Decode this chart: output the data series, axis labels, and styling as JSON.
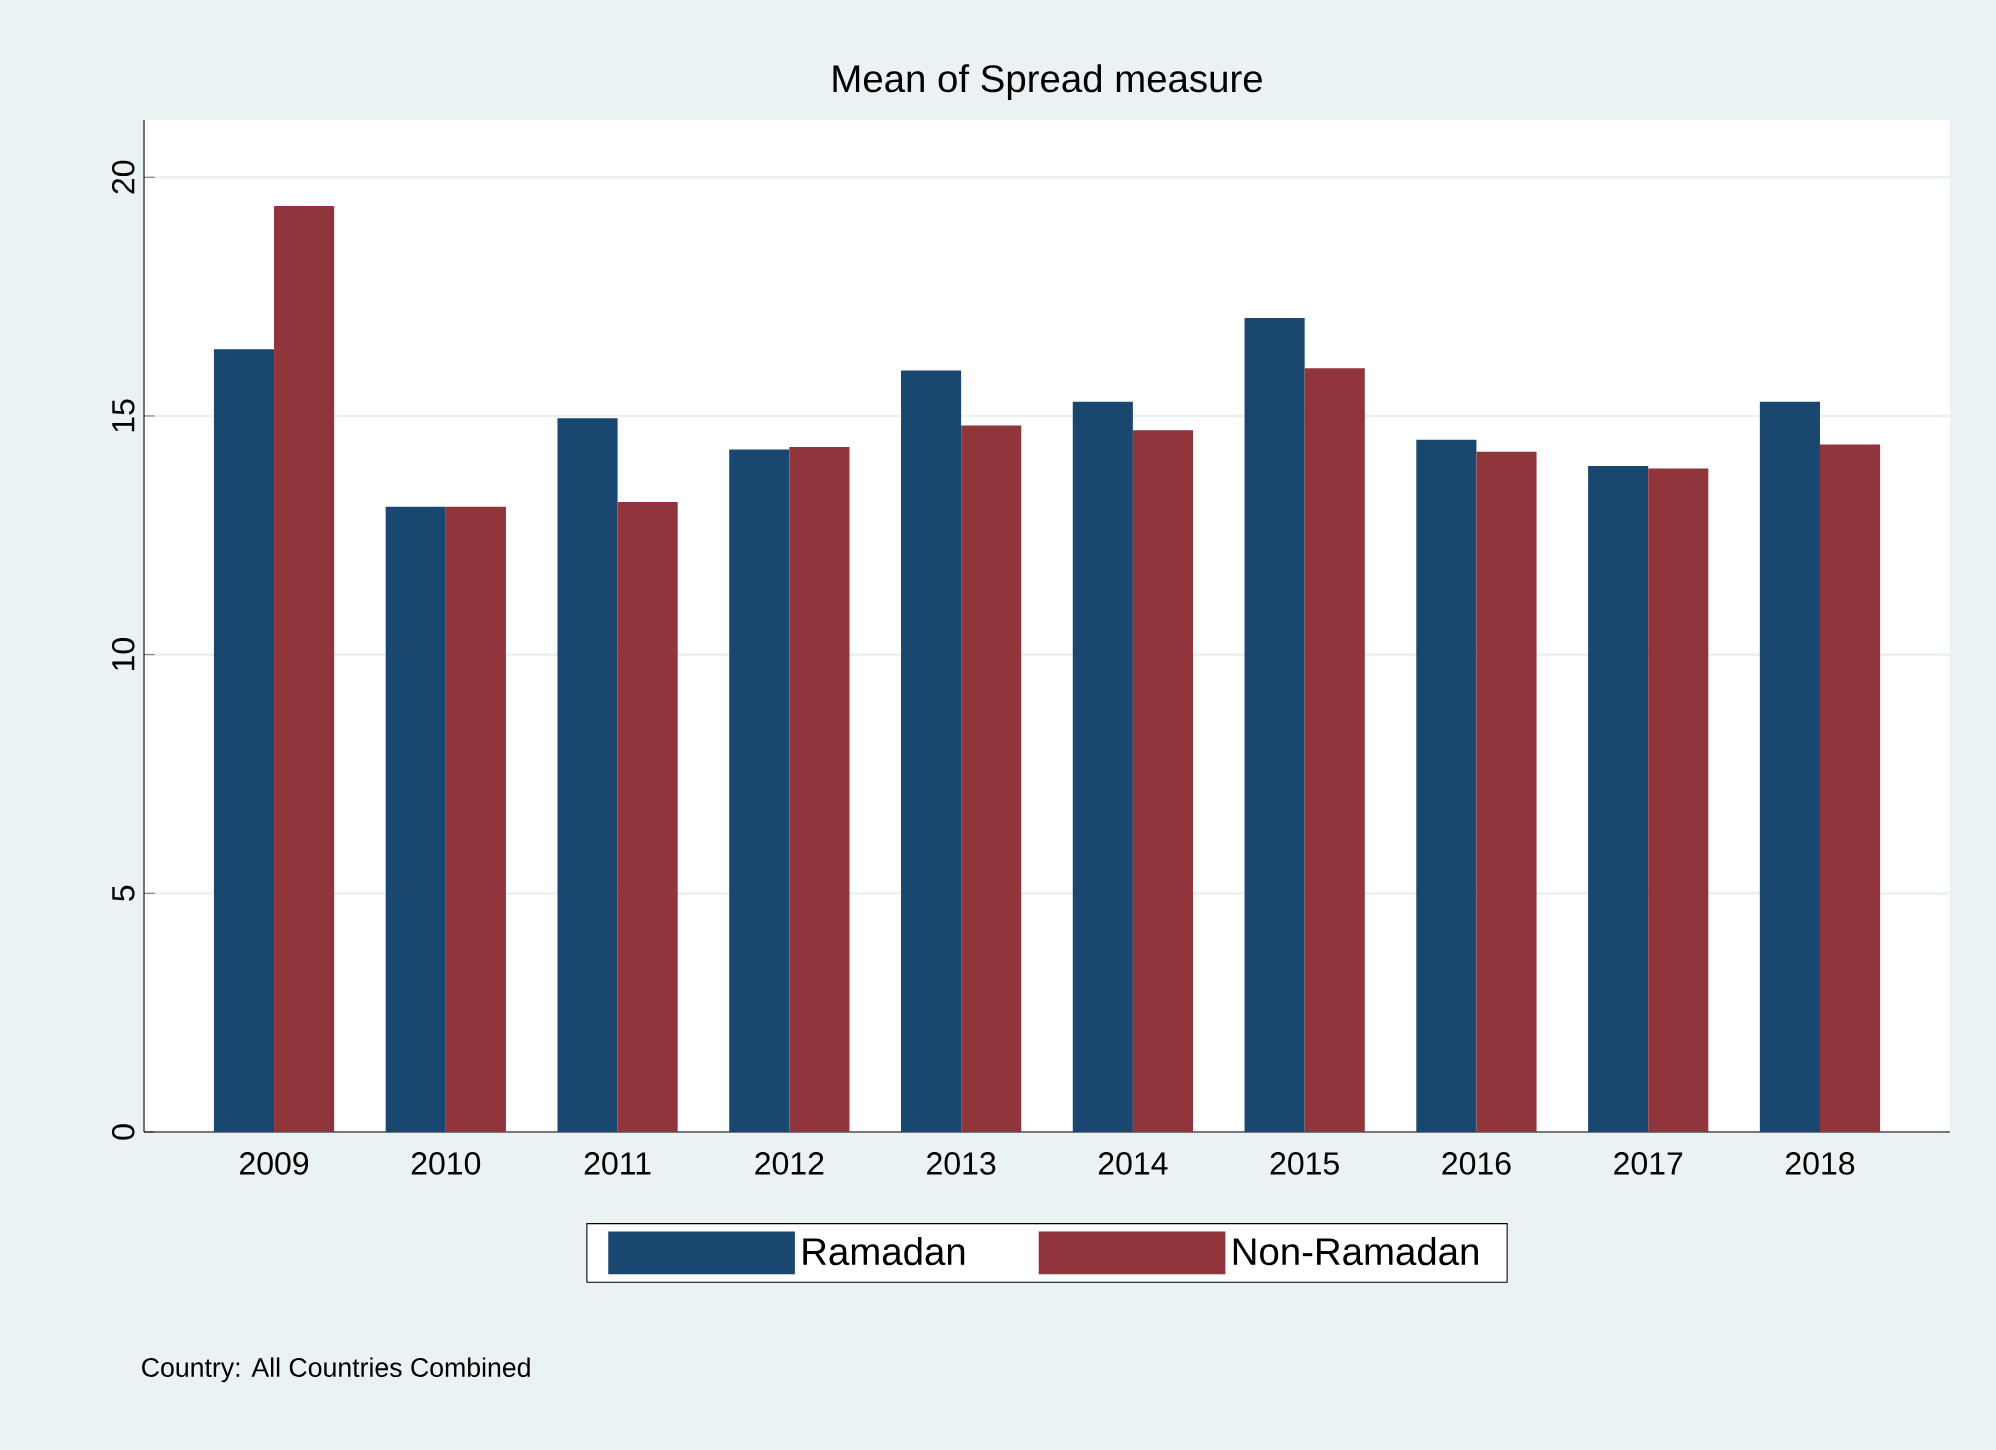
{
  "chart_data": {
    "type": "bar",
    "title": "Mean of Spread measure",
    "categories": [
      "2009",
      "2010",
      "2011",
      "2012",
      "2013",
      "2014",
      "2015",
      "2016",
      "2017",
      "2018"
    ],
    "series": [
      {
        "name": "Ramadan",
        "color": "#1a476f",
        "values": [
          16.4,
          13.1,
          14.95,
          14.3,
          15.95,
          15.3,
          17.05,
          14.5,
          13.95,
          15.3
        ]
      },
      {
        "name": "Non-Ramadan",
        "color": "#90353b",
        "values": [
          19.4,
          13.1,
          13.2,
          14.35,
          14.8,
          14.7,
          16.0,
          14.25,
          13.9,
          14.4
        ]
      }
    ],
    "ylim": [
      0,
      21.2
    ],
    "yticks": [
      0,
      5,
      10,
      15,
      20
    ],
    "grid": "y",
    "legend": "bottom",
    "annotations": [
      "Country: All Countries Combined"
    ]
  }
}
